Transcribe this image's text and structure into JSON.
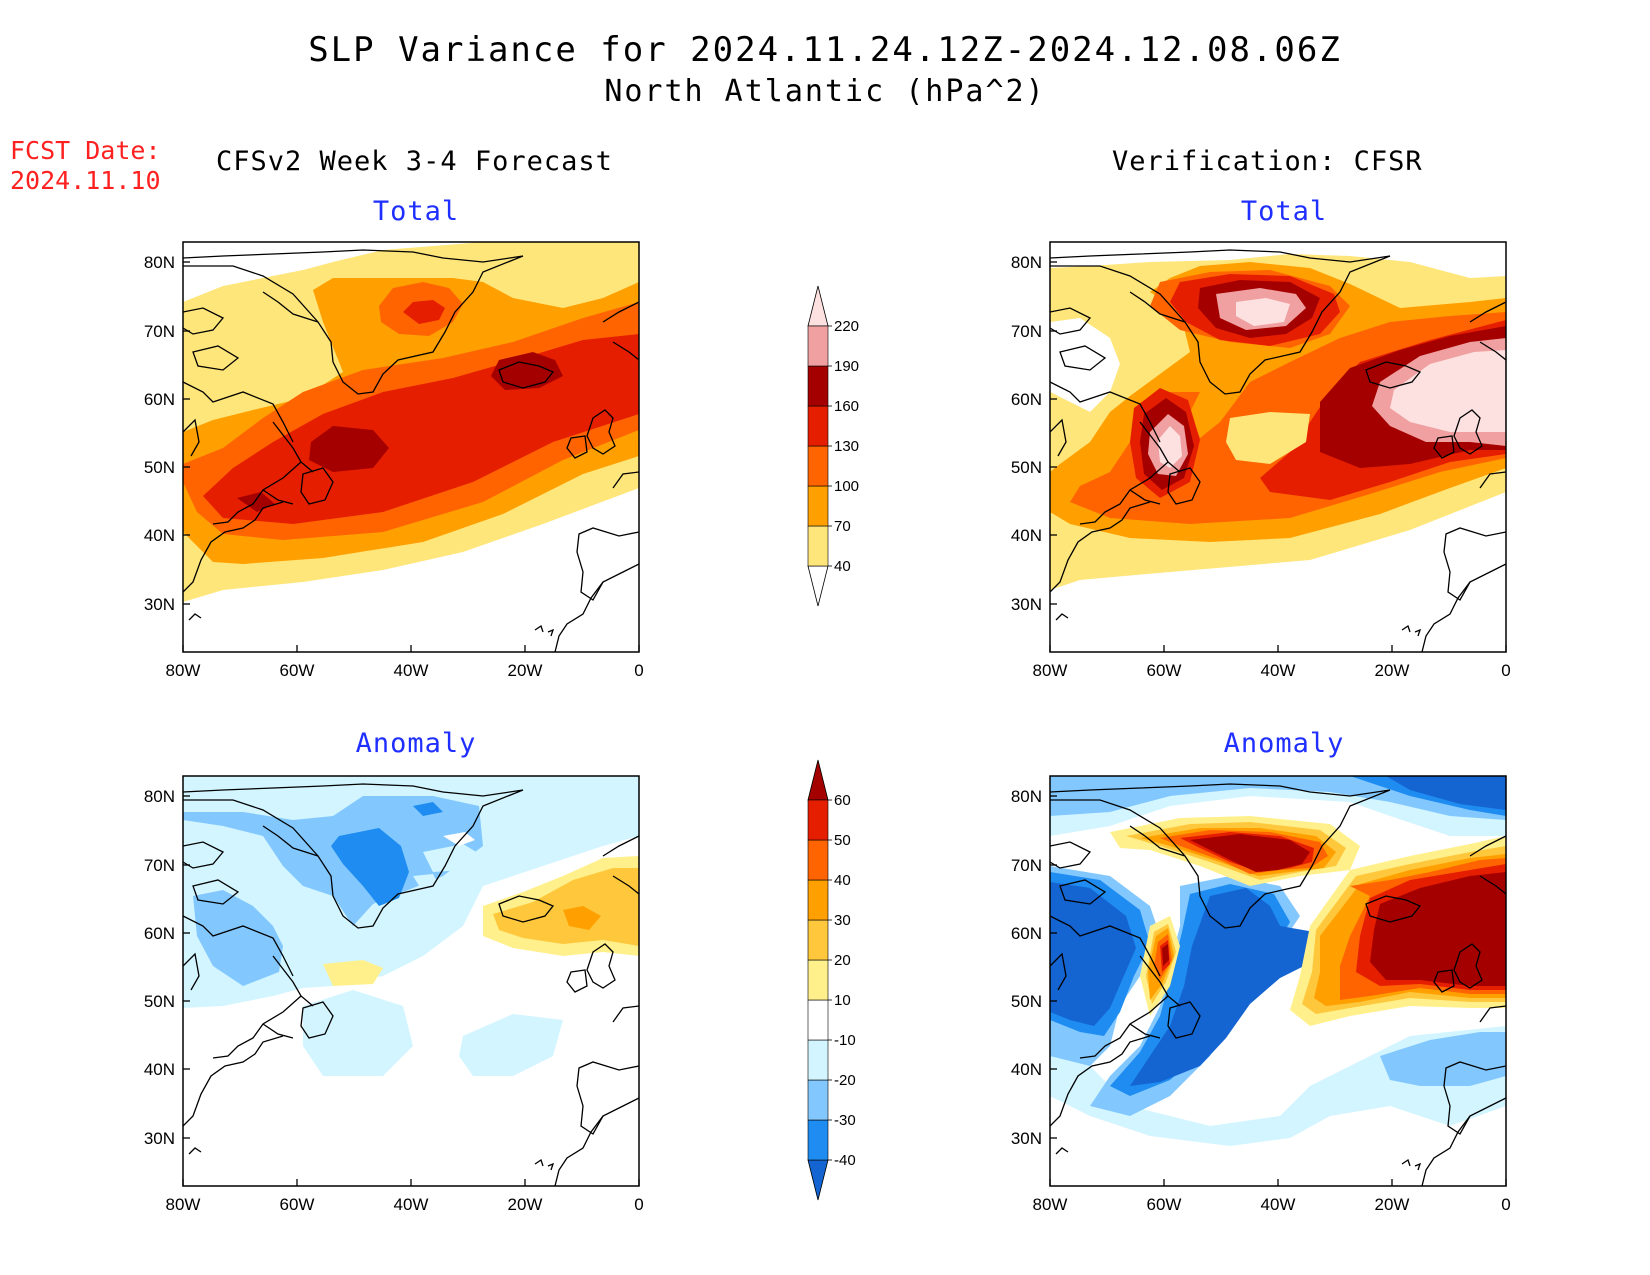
{
  "title": {
    "line1": "SLP Variance for 2024.11.24.12Z-2024.12.08.06Z",
    "line2": "North Atlantic (hPa^2)"
  },
  "fcst_date": {
    "label": "FCST Date:",
    "value": "2024.11.10"
  },
  "columns": {
    "left_title": "CFSv2 Week 3-4 Forecast",
    "right_title": "Verification: CFSR"
  },
  "rows": {
    "total": "Total",
    "anomaly": "Anomaly"
  },
  "axes": {
    "lon_labels": [
      "80W",
      "60W",
      "40W",
      "20W",
      "0"
    ],
    "lat_labels": [
      "80N",
      "70N",
      "60N",
      "50N",
      "40N",
      "30N"
    ]
  },
  "colorbars": {
    "total": {
      "levels": [
        "40",
        "70",
        "100",
        "130",
        "160",
        "190",
        "220"
      ],
      "colors": [
        "#ffffff",
        "#ffe67a",
        "#ffa000",
        "#ff6400",
        "#e61e00",
        "#a50000",
        "#f0a0a0",
        "#fde0e0"
      ]
    },
    "anomaly": {
      "levels": [
        "-40",
        "-30",
        "-20",
        "-10",
        "10",
        "20",
        "30",
        "40",
        "50",
        "60"
      ],
      "colors": [
        "#1464d2",
        "#1e8cf0",
        "#82c8ff",
        "#d2f5ff",
        "#ffffff",
        "#fff08c",
        "#ffc83c",
        "#ffa000",
        "#ff6400",
        "#e61e00",
        "#a50000"
      ]
    }
  },
  "map_colors": {
    "total": {
      "c40": "#ffe67a",
      "c70": "#ffa000",
      "c100": "#ff6400",
      "c130": "#e61e00",
      "c160": "#a50000",
      "c190": "#f0a0a0",
      "c220": "#fde0e0"
    },
    "anomaly": {
      "n40": "#1464d2",
      "n30": "#1e8cf0",
      "n20": "#82c8ff",
      "n10": "#d2f5ff",
      "p10": "#fff08c",
      "p20": "#ffc83c",
      "p30": "#ffa000",
      "p40": "#ff6400",
      "p50": "#e61e00",
      "p60": "#a50000"
    }
  }
}
